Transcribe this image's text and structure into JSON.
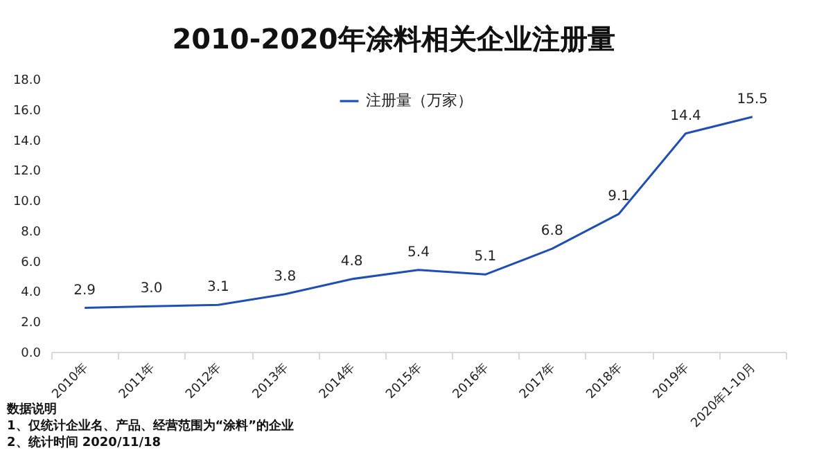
{
  "chart_data": {
    "type": "line",
    "title": "2010-2020年涂料相关企业注册量",
    "categories": [
      "2010年",
      "2011年",
      "2012年",
      "2013年",
      "2014年",
      "2015年",
      "2016年",
      "2017年",
      "2018年",
      "2019年",
      "2020年1-10月"
    ],
    "series": [
      {
        "name": "注册量（万家）",
        "color": "#1f4eb4",
        "values": [
          2.9,
          3.0,
          3.1,
          3.8,
          4.8,
          5.4,
          5.1,
          6.8,
          9.1,
          14.4,
          15.5
        ],
        "value_labels": [
          "2.9",
          "3.0",
          "3.1",
          "3.8",
          "4.8",
          "5.4",
          "5.1",
          "6.8",
          "9.1",
          "14.4",
          "15.5"
        ]
      }
    ],
    "ylim": [
      0,
      18
    ],
    "yticks": [
      {
        "value": 0,
        "label": "0.0"
      },
      {
        "value": 2,
        "label": "2.0"
      },
      {
        "value": 4,
        "label": "4.0"
      },
      {
        "value": 6,
        "label": "6.0"
      },
      {
        "value": 8,
        "label": "8.0"
      },
      {
        "value": 10,
        "label": "10.0"
      },
      {
        "value": 12,
        "label": "12.0"
      },
      {
        "value": 14,
        "label": "14.0"
      },
      {
        "value": 16,
        "label": "16.0"
      },
      {
        "value": 18,
        "label": "18.0"
      }
    ],
    "grid": false,
    "legend": "top",
    "marker": "none",
    "annotations": [
      "数据说明",
      "1、仅统计企业名、产品、经营范围为“涂料”的企业",
      "2、统计时间 2020/11/18"
    ]
  }
}
